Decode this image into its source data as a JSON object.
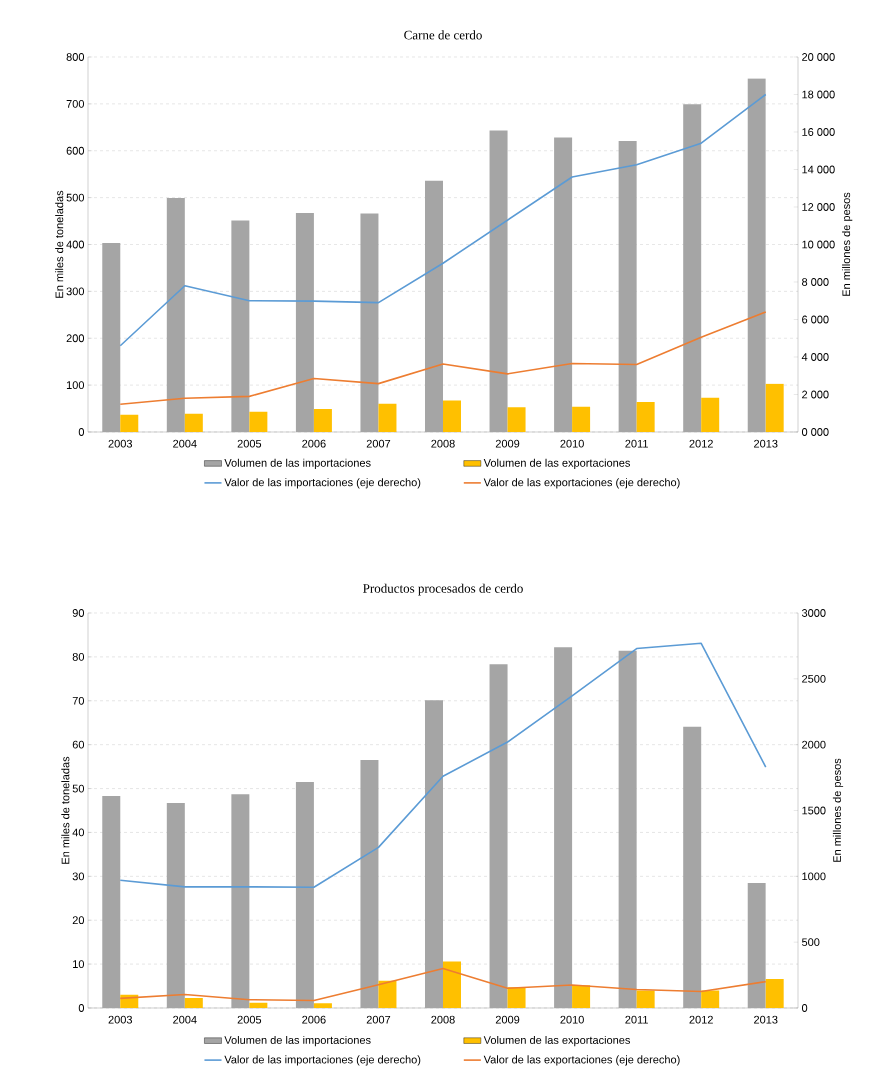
{
  "chart_data": [
    {
      "type": "bar",
      "title": "Carne de cerdo",
      "ylabel": "En miles de toneladas",
      "y2label": "En millones de pesos",
      "categories": [
        "2003",
        "2004",
        "2005",
        "2006",
        "2007",
        "2008",
        "2009",
        "2010",
        "2011",
        "2012",
        "2013"
      ],
      "series": [
        {
          "name": "Volumen de las importaciones",
          "color": "#a5a5a5",
          "values": [
            403,
            499,
            451,
            467,
            466,
            536,
            643,
            628,
            621,
            699,
            754
          ]
        },
        {
          "name": "Volumen de las exportaciones",
          "color": "#ffc000",
          "values": [
            37,
            39,
            43,
            49,
            60,
            67,
            53,
            54,
            64,
            73,
            103
          ]
        },
        {
          "name": "Valor de las importaciones (eje derecho)",
          "type": "line",
          "axis": "y2",
          "color": "#5b9bd5",
          "values": [
            4600,
            7800,
            7000,
            6980,
            6900,
            9000,
            11300,
            13600,
            14250,
            15400,
            18000
          ]
        },
        {
          "name": "Valor de las exportaciones (eje derecho)",
          "type": "line",
          "axis": "y2",
          "color": "#ed7d31",
          "values": [
            1480,
            1800,
            1900,
            2850,
            2580,
            3630,
            3100,
            3650,
            3600,
            5050,
            6400
          ]
        }
      ],
      "ylim": [
        0,
        800
      ],
      "yticks": [
        0,
        100,
        200,
        300,
        400,
        500,
        600,
        700,
        800
      ],
      "y2lim": [
        0,
        20000
      ],
      "y2ticks": [
        {
          "value": 0,
          "label": "0 000"
        },
        {
          "value": 2000,
          "label": "2 000"
        },
        {
          "value": 4000,
          "label": "4 000"
        },
        {
          "value": 6000,
          "label": "6 000"
        },
        {
          "value": 8000,
          "label": "8 000"
        },
        {
          "value": 10000,
          "label": "10 000"
        },
        {
          "value": 12000,
          "label": "12 000"
        },
        {
          "value": 14000,
          "label": "14 000"
        },
        {
          "value": 16000,
          "label": "16 000"
        },
        {
          "value": 18000,
          "label": "18 000"
        },
        {
          "value": 20000,
          "label": "20 000"
        }
      ],
      "grid": "y",
      "legend": "bottom",
      "marker": "none",
      "line_style": "solid"
    },
    {
      "type": "bar",
      "title": "Productos procesados de cerdo",
      "ylabel": "En miles de toneladas",
      "y2label": "En millones de pesos",
      "categories": [
        "2003",
        "2004",
        "2005",
        "2006",
        "2007",
        "2008",
        "2009",
        "2010",
        "2011",
        "2012",
        "2013"
      ],
      "series": [
        {
          "name": "Volumen de las importaciones",
          "color": "#a5a5a5",
          "values": [
            48.3,
            46.7,
            48.7,
            51.5,
            56.5,
            70.1,
            78.3,
            82.2,
            81.4,
            64.1,
            28.5
          ]
        },
        {
          "name": "Volumen de las exportaciones",
          "color": "#ffc000",
          "values": [
            3.0,
            2.3,
            1.2,
            1.1,
            6.2,
            10.6,
            4.7,
            5.2,
            4.0,
            4.0,
            6.6
          ]
        },
        {
          "name": "Valor de las importaciones (eje derecho)",
          "type": "line",
          "axis": "y2",
          "color": "#5b9bd5",
          "values": [
            970,
            920,
            920,
            917,
            1220,
            1760,
            2020,
            2370,
            2730,
            2770,
            1830
          ]
        },
        {
          "name": "Valor de las exportaciones (eje derecho)",
          "type": "line",
          "axis": "y2",
          "color": "#ed7d31",
          "values": [
            73,
            103,
            63,
            57,
            177,
            300,
            150,
            175,
            140,
            125,
            200
          ]
        }
      ],
      "ylim": [
        0,
        90
      ],
      "yticks": [
        0,
        10,
        20,
        30,
        40,
        50,
        60,
        70,
        80,
        90
      ],
      "y2lim": [
        0,
        3000
      ],
      "y2ticks": [
        0,
        500,
        1000,
        1500,
        2000,
        2500,
        3000
      ],
      "grid": "y",
      "legend": "bottom",
      "marker": "none",
      "line_style": "solid"
    }
  ]
}
